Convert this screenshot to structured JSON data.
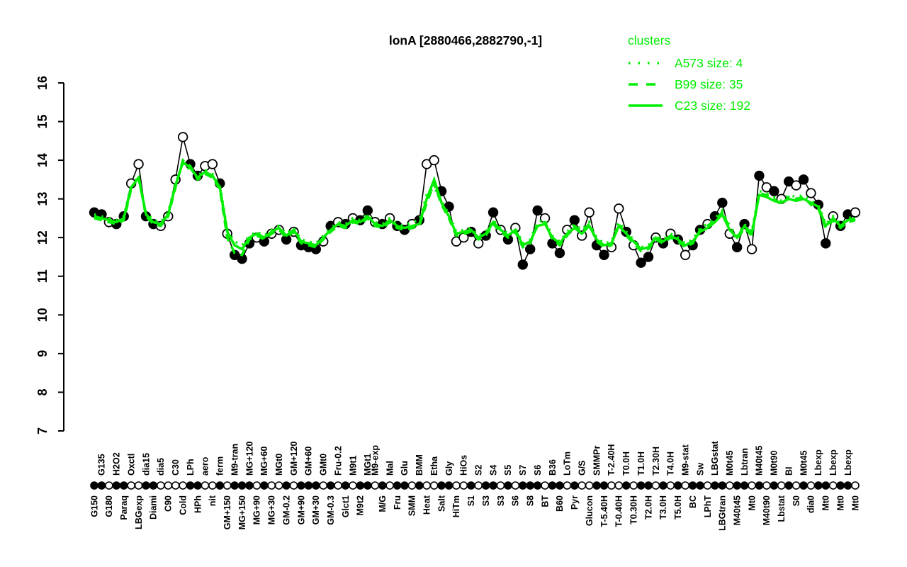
{
  "title": "lonA [2880466,2882790,-1]",
  "legend": {
    "title": "clusters",
    "items": [
      {
        "label": "A573 size: 4",
        "line": "dotted"
      },
      {
        "label": "B99 size: 35",
        "line": "dashed"
      },
      {
        "label": "C23 size: 192",
        "line": "solid"
      }
    ]
  },
  "colors": {
    "cluster": "#00ee00",
    "gene": "#000000",
    "background": "#ffffff"
  },
  "yaxis": {
    "ticks": [
      7,
      8,
      9,
      10,
      11,
      12,
      13,
      14,
      15,
      16
    ],
    "range": [
      7,
      16
    ]
  },
  "chart_data": {
    "type": "line",
    "title": "lonA [2880466,2882790,-1]",
    "xlabel": "",
    "ylabel": "",
    "ylim": [
      7,
      16
    ],
    "grid": false,
    "legend_position": "top-right",
    "categories": [
      "G150",
      "G135",
      "G180",
      "H2O2",
      "Paraq",
      "Oxctl",
      "LBGexp",
      "dia15",
      "Diami",
      "dia5",
      "C90",
      "C30",
      "Cold",
      "LPh",
      "HPh",
      "aero",
      "nit",
      "ferm",
      "GM+150",
      "M9-tran",
      "MG+150",
      "MG+120",
      "MG+90",
      "MG+60",
      "MG+30",
      "MGt0",
      "GM-0.2",
      "GM+120",
      "GM+90",
      "GM+60",
      "GM+30",
      "GMt0",
      "GM-0.3",
      "Fru-0.2",
      "Glct1",
      "M9t1",
      "M9t2",
      "MGt1",
      "M9-exp",
      "M/G",
      "Mal",
      "Fru",
      "Glu",
      "SMM",
      "BMM",
      "Heat",
      "Etha",
      "Salt",
      "Gly",
      "HiTm",
      "HiOs",
      "S1",
      "S2",
      "S3",
      "S4",
      "S3",
      "S5",
      "S6",
      "S7",
      "S8",
      "S6",
      "BT",
      "B36",
      "B60",
      "LoTm",
      "Pyr",
      "G/S",
      "Glucon",
      "SMMPr",
      "T-5.40H",
      "T-2.40H",
      "T-0.40H",
      "T0.0H",
      "T0.30H",
      "T1.0H",
      "T2.0H",
      "T2.30H",
      "T3.0H",
      "T4.0H",
      "T5.0H",
      "M9-stat",
      "BC",
      "Sw",
      "LPhT",
      "LBGstat",
      "LBGtran",
      "M0t45",
      "M40t45",
      "Lbtran",
      "Mt0",
      "M40t45",
      "M40t90",
      "M0t90",
      "Lbstat",
      "BI",
      "S0",
      "M0t45",
      "dia0",
      "Lbexp",
      "Mt0",
      "Lbexp",
      "Mt0",
      "Lbexp",
      "Mt0"
    ],
    "label_row": [
      "b",
      "t",
      "b",
      "t",
      "b",
      "t",
      "b",
      "t",
      "b",
      "t",
      "b",
      "t",
      "b",
      "t",
      "b",
      "t",
      "b",
      "t",
      "b",
      "t",
      "b",
      "t",
      "b",
      "t",
      "b",
      "t",
      "b",
      "t",
      "b",
      "t",
      "b",
      "t",
      "b",
      "t",
      "b",
      "t",
      "b",
      "t",
      "t",
      "b",
      "t",
      "b",
      "t",
      "b",
      "t",
      "b",
      "t",
      "b",
      "t",
      "b",
      "t",
      "b",
      "t",
      "b",
      "t",
      "b",
      "t",
      "b",
      "t",
      "b",
      "t",
      "b",
      "t",
      "b",
      "t",
      "b",
      "t",
      "b",
      "t",
      "b",
      "t",
      "b",
      "t",
      "b",
      "t",
      "b",
      "t",
      "b",
      "t",
      "b",
      "t",
      "b",
      "t",
      "b",
      "t",
      "b",
      "t",
      "b",
      "t",
      "b",
      "t",
      "b",
      "t",
      "b",
      "t",
      "b",
      "t",
      "b",
      "t",
      "b",
      "t",
      "b",
      "t",
      "b"
    ],
    "marker": [
      "f",
      "f",
      "o",
      "f",
      "f",
      "o",
      "o",
      "f",
      "f",
      "o",
      "o",
      "o",
      "o",
      "f",
      "f",
      "o",
      "o",
      "f",
      "o",
      "f",
      "f",
      "f",
      "o",
      "f",
      "o",
      "o",
      "f",
      "o",
      "f",
      "f",
      "f",
      "o",
      "f",
      "o",
      "f",
      "o",
      "f",
      "f",
      "o",
      "f",
      "o",
      "f",
      "f",
      "o",
      "f",
      "o",
      "o",
      "f",
      "f",
      "o",
      "o",
      "f",
      "o",
      "f",
      "f",
      "o",
      "f",
      "o",
      "f",
      "f",
      "f",
      "o",
      "f",
      "f",
      "o",
      "f",
      "o",
      "o",
      "f",
      "f",
      "o",
      "o",
      "f",
      "o",
      "f",
      "f",
      "o",
      "f",
      "o",
      "f",
      "o",
      "f",
      "f",
      "o",
      "f",
      "f",
      "o",
      "f",
      "f",
      "o",
      "f",
      "o",
      "f",
      "o",
      "f",
      "o",
      "f",
      "o",
      "f",
      "f",
      "o",
      "f",
      "f",
      "o"
    ],
    "series": [
      {
        "name": "lonA",
        "role": "gene",
        "color": "#000000",
        "line": "solid",
        "values": [
          12.65,
          12.6,
          12.4,
          12.35,
          12.55,
          13.4,
          13.9,
          12.55,
          12.35,
          12.3,
          12.55,
          13.5,
          14.6,
          13.9,
          13.6,
          13.85,
          13.9,
          13.4,
          12.1,
          11.55,
          11.45,
          11.85,
          12.0,
          11.9,
          12.1,
          12.2,
          11.95,
          12.15,
          11.8,
          11.75,
          11.7,
          11.9,
          12.3,
          12.4,
          12.35,
          12.5,
          12.45,
          12.7,
          12.4,
          12.35,
          12.5,
          12.3,
          12.2,
          12.35,
          12.45,
          13.9,
          14.0,
          13.2,
          12.8,
          11.9,
          12.0,
          12.15,
          11.85,
          12.05,
          12.65,
          12.2,
          11.95,
          12.25,
          11.3,
          11.7,
          12.7,
          12.5,
          11.85,
          11.6,
          12.2,
          12.45,
          12.05,
          12.65,
          11.8,
          11.55,
          11.75,
          12.75,
          12.15,
          11.8,
          11.35,
          11.5,
          12.0,
          11.85,
          12.1,
          11.95,
          11.55,
          11.8,
          12.2,
          12.35,
          12.55,
          12.9,
          12.1,
          11.75,
          12.35,
          11.7,
          13.6,
          13.3,
          13.2,
          13.0,
          13.45,
          13.35,
          13.5,
          13.15,
          12.85,
          11.85,
          12.55,
          12.3,
          12.6,
          12.65
        ]
      },
      {
        "name": "A573 size: 4",
        "role": "cluster",
        "color": "#00ee00",
        "line": "dotted",
        "values": [
          12.6,
          12.55,
          12.5,
          12.45,
          12.55,
          13.35,
          13.5,
          12.65,
          12.45,
          12.4,
          12.65,
          13.4,
          13.9,
          13.75,
          13.6,
          13.75,
          13.65,
          13.35,
          12.2,
          11.9,
          11.8,
          12.05,
          12.15,
          12.05,
          12.2,
          12.3,
          12.1,
          12.25,
          11.95,
          11.9,
          11.85,
          12.05,
          12.25,
          12.4,
          12.35,
          12.5,
          12.45,
          12.6,
          12.4,
          12.35,
          12.5,
          12.35,
          12.3,
          12.4,
          12.45,
          13.1,
          13.3,
          12.95,
          12.6,
          12.15,
          12.2,
          12.25,
          12.05,
          12.15,
          12.45,
          12.25,
          12.1,
          12.25,
          11.85,
          11.95,
          12.4,
          12.45,
          12.05,
          11.9,
          12.15,
          12.35,
          12.2,
          12.4,
          12.0,
          11.85,
          11.9,
          12.4,
          12.15,
          11.95,
          11.75,
          11.8,
          12.05,
          11.95,
          12.1,
          12.0,
          11.85,
          11.95,
          12.25,
          12.35,
          12.5,
          12.7,
          12.3,
          12.05,
          12.35,
          12.15,
          13.2,
          13.15,
          13.05,
          12.95,
          13.1,
          13.05,
          13.1,
          12.95,
          12.85,
          12.35,
          12.55,
          12.35,
          12.5,
          12.55
        ]
      },
      {
        "name": "B99 size: 35",
        "role": "cluster",
        "color": "#00ee00",
        "line": "dashed",
        "values": [
          12.5,
          12.45,
          12.4,
          12.35,
          12.45,
          13.25,
          13.6,
          12.55,
          12.35,
          12.3,
          12.55,
          13.3,
          14.0,
          13.85,
          13.5,
          13.65,
          13.55,
          13.25,
          12.0,
          11.6,
          11.55,
          11.95,
          12.05,
          11.95,
          12.1,
          12.2,
          12.0,
          12.15,
          11.85,
          11.8,
          11.75,
          11.95,
          12.15,
          12.3,
          12.25,
          12.4,
          12.35,
          12.5,
          12.3,
          12.25,
          12.4,
          12.25,
          12.2,
          12.25,
          12.3,
          12.9,
          13.4,
          12.85,
          12.5,
          12.05,
          12.1,
          12.15,
          11.95,
          12.05,
          12.35,
          12.15,
          12.0,
          12.15,
          11.75,
          11.85,
          12.35,
          12.4,
          11.95,
          11.8,
          12.05,
          12.3,
          12.15,
          12.35,
          11.9,
          11.75,
          11.8,
          12.35,
          12.05,
          11.85,
          11.65,
          11.7,
          11.95,
          11.85,
          12.0,
          11.9,
          11.75,
          11.85,
          12.2,
          12.3,
          12.45,
          12.65,
          12.25,
          11.95,
          12.25,
          12.05,
          13.15,
          13.1,
          13.0,
          12.85,
          13.05,
          13.0,
          13.05,
          12.85,
          12.75,
          12.25,
          12.45,
          12.25,
          12.4,
          12.45
        ]
      },
      {
        "name": "C23 size: 192",
        "role": "cluster",
        "color": "#00ee00",
        "line": "solid",
        "values": [
          12.55,
          12.5,
          12.45,
          12.4,
          12.5,
          13.3,
          13.55,
          12.6,
          12.4,
          12.35,
          12.6,
          13.35,
          13.95,
          13.8,
          13.55,
          13.7,
          13.6,
          13.3,
          12.15,
          11.8,
          11.7,
          12.0,
          12.1,
          12.0,
          12.15,
          12.25,
          12.05,
          12.2,
          11.9,
          11.85,
          11.8,
          12.0,
          12.2,
          12.35,
          12.3,
          12.45,
          12.4,
          12.55,
          12.35,
          12.3,
          12.45,
          12.3,
          12.25,
          12.3,
          12.35,
          13.0,
          13.5,
          12.9,
          12.55,
          12.1,
          12.15,
          12.2,
          12.0,
          12.1,
          12.4,
          12.2,
          12.05,
          12.2,
          11.8,
          11.9,
          12.3,
          12.35,
          12.0,
          11.85,
          12.1,
          12.25,
          12.1,
          12.3,
          11.95,
          11.8,
          11.85,
          12.3,
          12.1,
          11.9,
          11.7,
          11.75,
          12.0,
          11.9,
          12.05,
          11.95,
          11.8,
          11.9,
          12.15,
          12.25,
          12.4,
          12.6,
          12.2,
          12.0,
          12.3,
          12.1,
          13.1,
          13.05,
          12.95,
          12.9,
          13.0,
          12.95,
          13.0,
          12.9,
          12.8,
          12.3,
          12.5,
          12.3,
          12.45,
          12.5
        ]
      }
    ]
  }
}
